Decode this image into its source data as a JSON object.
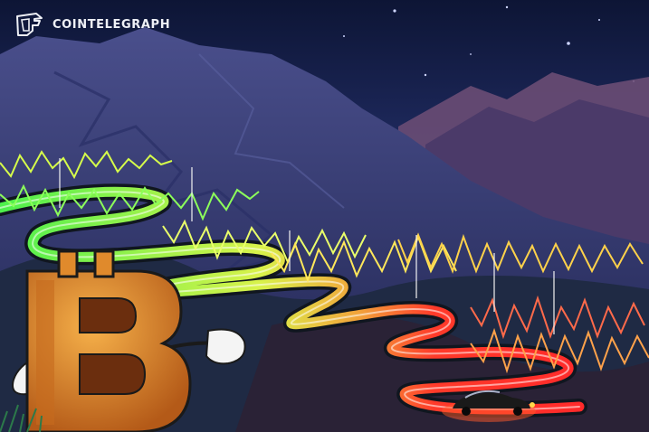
{
  "brand": {
    "name": "COINTELEGRAPH",
    "logo_icon": "cointelegraph-logo-icon"
  },
  "scene": {
    "subject": "bitcoin-character",
    "colors": {
      "sky_top": "#0e1740",
      "sky_glow": "#f08a3e",
      "mountain": "#3a3f78",
      "road_green": "#5cf25c",
      "road_yellow": "#f2e64a",
      "road_red": "#ff3a2a",
      "coin": "#e08a2c"
    }
  }
}
